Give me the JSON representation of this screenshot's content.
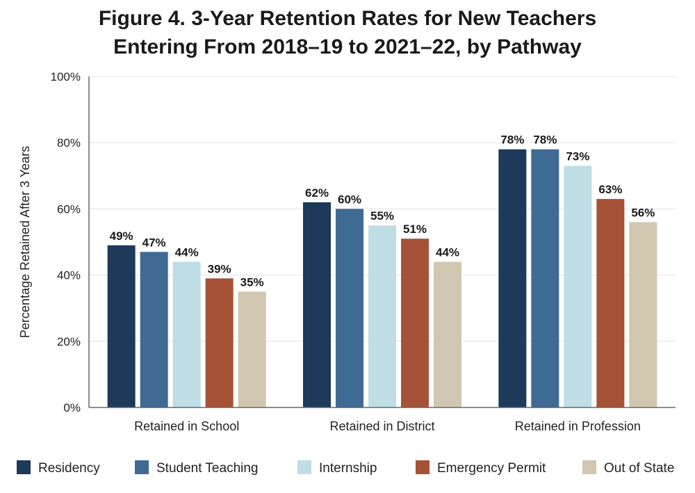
{
  "chart_data": {
    "type": "bar",
    "title_line1": "Figure 4. 3-Year Retention Rates for New Teachers",
    "title_line2": "Entering From 2018–19 to 2021–22, by Pathway",
    "ylabel": "Percentage Retained After 3 Years",
    "xlabel": "",
    "ylim": [
      0,
      100
    ],
    "yticks": [
      "0%",
      "20%",
      "40%",
      "60%",
      "80%",
      "100%"
    ],
    "grid": true,
    "legend_position": "bottom",
    "categories": [
      "Retained in School",
      "Retained in District",
      "Retained in Profession"
    ],
    "series": [
      {
        "name": "Residency",
        "color": "#1e3a5a",
        "values": [
          49,
          62,
          78
        ],
        "labels": [
          "49%",
          "62%",
          "78%"
        ]
      },
      {
        "name": "Student Teaching",
        "color": "#3f6a94",
        "values": [
          47,
          60,
          78
        ],
        "labels": [
          "47%",
          "60%",
          "78%"
        ]
      },
      {
        "name": "Internship",
        "color": "#bfdde5",
        "values": [
          44,
          55,
          73
        ],
        "labels": [
          "44%",
          "55%",
          "73%"
        ]
      },
      {
        "name": "Emergency Permit",
        "color": "#a65236",
        "values": [
          39,
          51,
          63
        ],
        "labels": [
          "39%",
          "51%",
          "63%"
        ]
      },
      {
        "name": "Out of State",
        "color": "#d1c6b0",
        "values": [
          35,
          44,
          56
        ],
        "labels": [
          "35%",
          "44%",
          "56%"
        ]
      }
    ]
  }
}
